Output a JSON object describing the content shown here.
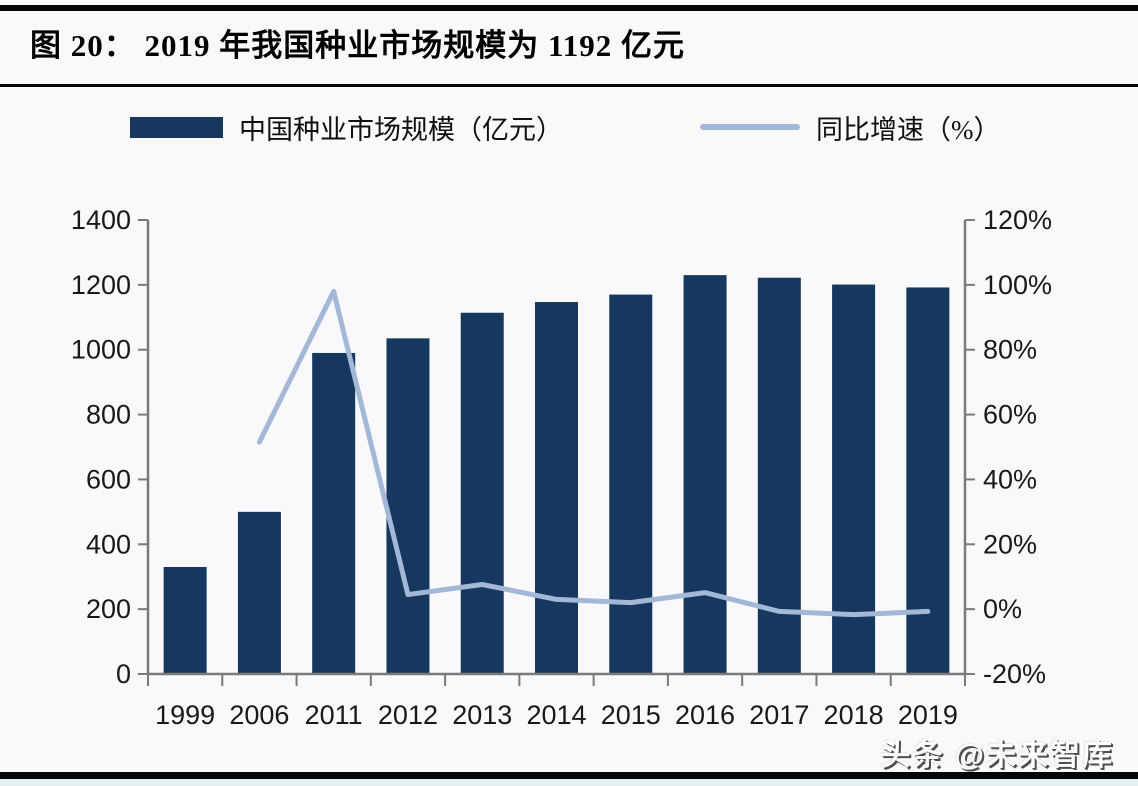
{
  "page": {
    "title": "图 20：  2019 年我国种业市场规模为 1192 亿元",
    "watermark": "头条 @未来智库"
  },
  "legend": [
    {
      "type": "bar",
      "label": "中国种业市场规模（亿元）",
      "color": "#16375e"
    },
    {
      "type": "line",
      "label": "同比增速（%）",
      "color": "#a3b7d6"
    }
  ],
  "chart_data": {
    "type": "bar+line combo",
    "title": "2019 年我国种业市场规模为 1192 亿元",
    "categories": [
      "1999",
      "2006",
      "2011",
      "2012",
      "2013",
      "2014",
      "2015",
      "2016",
      "2017",
      "2018",
      "2019"
    ],
    "series": [
      {
        "name": "中国种业市场规模（亿元）",
        "type": "bar",
        "axis": "left",
        "color": "#16375e",
        "values": [
          330,
          500,
          990,
          1035,
          1114,
          1147,
          1170,
          1230,
          1222,
          1201,
          1192
        ]
      },
      {
        "name": "同比增速（%）",
        "type": "line",
        "axis": "right",
        "color": "#a3b7d6",
        "values": [
          null,
          51.5,
          98.0,
          4.5,
          7.6,
          3.0,
          2.0,
          5.1,
          -0.7,
          -1.7,
          -0.7
        ]
      }
    ],
    "left_axis": {
      "min": 0,
      "max": 1400,
      "step": 200,
      "tick_labels": [
        "0",
        "200",
        "400",
        "600",
        "800",
        "1000",
        "1200",
        "1400"
      ]
    },
    "right_axis": {
      "min": -20,
      "max": 120,
      "step": 20,
      "tick_labels": [
        "-20%",
        "0%",
        "20%",
        "40%",
        "60%",
        "80%",
        "100%",
        "120%"
      ]
    },
    "grid": false,
    "legend_position": "top",
    "axis_color": "#7a7a7a"
  }
}
